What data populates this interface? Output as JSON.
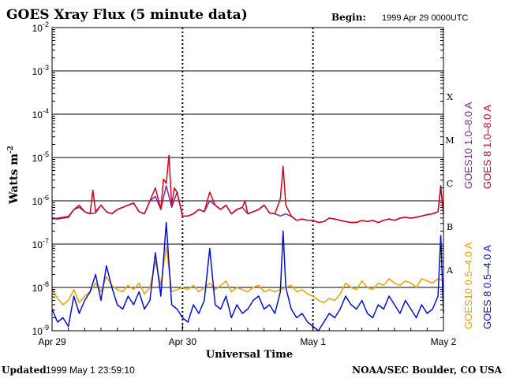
{
  "header": {
    "title": "GOES Xray Flux (5 minute data)",
    "begin_label": "Begin:",
    "begin_value": "1999 Apr 29 0000UTC"
  },
  "footer": {
    "updated_label": "Updated",
    "updated_value": "1999 May  1 23:59:10",
    "credit": "NOAA/SEC Boulder, CO USA"
  },
  "chart_data": {
    "type": "line",
    "title": "GOES Xray Flux (5 minute data)",
    "xlabel": "Universal Time",
    "ylabel": "Watts m",
    "ylabel_sup": "-2",
    "yscale": "log",
    "ylim": [
      1e-09,
      0.01
    ],
    "xlim": [
      0,
      72
    ],
    "x_unit": "hours since 1999 Apr 29 0000UTC",
    "x_ticks": [
      {
        "value": 0,
        "label": "Apr 29"
      },
      {
        "value": 24,
        "label": "Apr 30"
      },
      {
        "value": 48,
        "label": "May 1"
      },
      {
        "value": 72,
        "label": "May 2"
      }
    ],
    "y_ticks": [
      {
        "exp": -2,
        "label": "10",
        "sup": "-2"
      },
      {
        "exp": -3,
        "label": "10",
        "sup": "-3"
      },
      {
        "exp": -4,
        "label": "10",
        "sup": "-4"
      },
      {
        "exp": -5,
        "label": "10",
        "sup": "-5"
      },
      {
        "exp": -6,
        "label": "10",
        "sup": "-6"
      },
      {
        "exp": -7,
        "label": "10",
        "sup": "-7"
      },
      {
        "exp": -8,
        "label": "10",
        "sup": "-8"
      },
      {
        "exp": -9,
        "label": "10",
        "sup": "-9"
      }
    ],
    "flare_classes": [
      {
        "label": "X",
        "exp": -3.6
      },
      {
        "label": "M",
        "exp": -4.6
      },
      {
        "label": "C",
        "exp": -5.6
      },
      {
        "label": "B",
        "exp": -6.6
      },
      {
        "label": "A",
        "exp": -7.6
      }
    ],
    "grid": true,
    "series": [
      {
        "name": "GOES10 1.0–8.0 A",
        "color": "#7a28a8",
        "points": [
          [
            0,
            -6.42
          ],
          [
            1,
            -6.4
          ],
          [
            2,
            -6.38
          ],
          [
            3,
            -6.36
          ],
          [
            4,
            -6.2
          ],
          [
            5,
            -6.15
          ],
          [
            6,
            -6.25
          ],
          [
            7,
            -6.3
          ],
          [
            8,
            -6.28
          ],
          [
            9,
            -6.1
          ],
          [
            10,
            -6.25
          ],
          [
            11,
            -6.3
          ],
          [
            12,
            -6.2
          ],
          [
            13,
            -6.15
          ],
          [
            14,
            -6.1
          ],
          [
            15,
            -6.05
          ],
          [
            16,
            -6.25
          ],
          [
            17,
            -6.3
          ],
          [
            18,
            -6.0
          ],
          [
            19,
            -5.9
          ],
          [
            20,
            -6.2
          ],
          [
            21,
            -5.65
          ],
          [
            22,
            -6.15
          ],
          [
            23,
            -5.8
          ],
          [
            24,
            -6.35
          ],
          [
            25,
            -6.35
          ],
          [
            26,
            -6.3
          ],
          [
            27,
            -6.2
          ],
          [
            28,
            -6.25
          ],
          [
            29,
            -6.0
          ],
          [
            30,
            -6.1
          ],
          [
            31,
            -6.2
          ],
          [
            32,
            -6.1
          ],
          [
            33,
            -6.3
          ],
          [
            34,
            -6.2
          ],
          [
            35,
            -6.15
          ],
          [
            36,
            -6.3
          ],
          [
            37,
            -6.25
          ],
          [
            38,
            -6.2
          ],
          [
            39,
            -6.1
          ],
          [
            40,
            -6.28
          ],
          [
            41,
            -6.3
          ],
          [
            42,
            -6.35
          ],
          [
            43,
            -6.3
          ],
          [
            44,
            -6.36
          ],
          [
            45,
            -6.45
          ],
          [
            46,
            -6.42
          ],
          [
            47,
            -6.45
          ],
          [
            48,
            -6.45
          ],
          [
            49,
            -6.5
          ],
          [
            50,
            -6.48
          ],
          [
            51,
            -6.4
          ],
          [
            52,
            -6.42
          ],
          [
            53,
            -6.45
          ],
          [
            54,
            -6.48
          ],
          [
            55,
            -6.5
          ],
          [
            56,
            -6.5
          ],
          [
            57,
            -6.45
          ],
          [
            58,
            -6.48
          ],
          [
            59,
            -6.45
          ],
          [
            60,
            -6.5
          ],
          [
            61,
            -6.45
          ],
          [
            62,
            -6.42
          ],
          [
            63,
            -6.45
          ],
          [
            64,
            -6.4
          ],
          [
            65,
            -6.38
          ],
          [
            66,
            -6.4
          ],
          [
            67,
            -6.38
          ],
          [
            68,
            -6.35
          ],
          [
            69,
            -6.32
          ],
          [
            70,
            -6.3
          ],
          [
            71,
            -6.25
          ],
          [
            71.5,
            -5.7
          ],
          [
            72,
            -6.3
          ]
        ]
      },
      {
        "name": "GOES 8 1.0–8.0 A",
        "color": "#d8001c",
        "points": [
          [
            0,
            -6.4
          ],
          [
            1,
            -6.42
          ],
          [
            2,
            -6.4
          ],
          [
            3,
            -6.38
          ],
          [
            4,
            -6.2
          ],
          [
            5,
            -6.1
          ],
          [
            6,
            -6.25
          ],
          [
            7,
            -6.3
          ],
          [
            7.5,
            -5.75
          ],
          [
            8,
            -6.25
          ],
          [
            9,
            -6.1
          ],
          [
            10,
            -6.25
          ],
          [
            11,
            -6.3
          ],
          [
            12,
            -6.2
          ],
          [
            13,
            -6.15
          ],
          [
            14,
            -6.1
          ],
          [
            15,
            -6.05
          ],
          [
            16,
            -6.25
          ],
          [
            17,
            -6.3
          ],
          [
            18,
            -6.0
          ],
          [
            19,
            -5.7
          ],
          [
            20,
            -6.2
          ],
          [
            20.5,
            -5.5
          ],
          [
            21,
            -5.6
          ],
          [
            21.5,
            -4.95
          ],
          [
            22,
            -6.1
          ],
          [
            22.5,
            -5.7
          ],
          [
            23,
            -5.8
          ],
          [
            24,
            -6.35
          ],
          [
            25,
            -6.35
          ],
          [
            26,
            -6.3
          ],
          [
            27,
            -6.2
          ],
          [
            28,
            -6.25
          ],
          [
            29,
            -5.8
          ],
          [
            30,
            -6.1
          ],
          [
            31,
            -6.2
          ],
          [
            32,
            -6.1
          ],
          [
            33,
            -6.3
          ],
          [
            34,
            -6.2
          ],
          [
            35,
            -6.15
          ],
          [
            35.5,
            -6.0
          ],
          [
            36,
            -6.3
          ],
          [
            37,
            -6.25
          ],
          [
            38,
            -6.2
          ],
          [
            39,
            -6.1
          ],
          [
            40,
            -6.28
          ],
          [
            41,
            -6.3
          ],
          [
            42,
            -5.95
          ],
          [
            42.5,
            -5.2
          ],
          [
            43,
            -6.1
          ],
          [
            44,
            -6.35
          ],
          [
            45,
            -6.45
          ],
          [
            46,
            -6.42
          ],
          [
            47,
            -6.45
          ],
          [
            48,
            -6.45
          ],
          [
            49,
            -6.5
          ],
          [
            50,
            -6.48
          ],
          [
            51,
            -6.4
          ],
          [
            52,
            -6.42
          ],
          [
            53,
            -6.45
          ],
          [
            54,
            -6.48
          ],
          [
            55,
            -6.5
          ],
          [
            56,
            -6.5
          ],
          [
            57,
            -6.45
          ],
          [
            58,
            -6.48
          ],
          [
            59,
            -6.45
          ],
          [
            60,
            -6.5
          ],
          [
            61,
            -6.45
          ],
          [
            62,
            -6.42
          ],
          [
            63,
            -6.45
          ],
          [
            64,
            -6.4
          ],
          [
            65,
            -6.38
          ],
          [
            66,
            -6.4
          ],
          [
            67,
            -6.38
          ],
          [
            68,
            -6.35
          ],
          [
            69,
            -6.32
          ],
          [
            70,
            -6.3
          ],
          [
            71,
            -6.25
          ],
          [
            71.5,
            -5.65
          ],
          [
            72,
            -6.28
          ]
        ]
      },
      {
        "name": "GOES10 0.5–4.0 A",
        "color": "#f0a000",
        "points": [
          [
            0,
            -8.05
          ],
          [
            1,
            -8.25
          ],
          [
            2,
            -8.4
          ],
          [
            3,
            -8.3
          ],
          [
            4,
            -8.05
          ],
          [
            5,
            -8.35
          ],
          [
            6,
            -8.2
          ],
          [
            7,
            -8.1
          ],
          [
            8,
            -7.9
          ],
          [
            9,
            -8.1
          ],
          [
            10,
            -7.75
          ],
          [
            11,
            -7.95
          ],
          [
            12,
            -8.05
          ],
          [
            13,
            -8.1
          ],
          [
            14,
            -7.95
          ],
          [
            15,
            -8.05
          ],
          [
            16,
            -7.9
          ],
          [
            17,
            -8.15
          ],
          [
            18,
            -8.0
          ],
          [
            19,
            -7.4
          ],
          [
            20,
            -7.95
          ],
          [
            21,
            -7.05
          ],
          [
            22,
            -8.1
          ],
          [
            23,
            -8.05
          ],
          [
            24,
            -8.0
          ],
          [
            25,
            -8.05
          ],
          [
            26,
            -7.95
          ],
          [
            27,
            -8.1
          ],
          [
            28,
            -8.0
          ],
          [
            29,
            -7.9
          ],
          [
            30,
            -8.05
          ],
          [
            31,
            -7.95
          ],
          [
            32,
            -7.85
          ],
          [
            33,
            -8.1
          ],
          [
            34,
            -8.0
          ],
          [
            35,
            -8.05
          ],
          [
            36,
            -8.1
          ],
          [
            37,
            -8.0
          ],
          [
            38,
            -7.95
          ],
          [
            39,
            -8.1
          ],
          [
            40,
            -8.05
          ],
          [
            41,
            -8.1
          ],
          [
            42,
            -8.05
          ],
          [
            43,
            -8.0
          ],
          [
            44,
            -7.95
          ],
          [
            45,
            -8.1
          ],
          [
            46,
            -8.05
          ],
          [
            47,
            -8.15
          ],
          [
            48,
            -8.2
          ],
          [
            49,
            -8.3
          ],
          [
            50,
            -8.35
          ],
          [
            51,
            -8.25
          ],
          [
            52,
            -8.3
          ],
          [
            53,
            -8.15
          ],
          [
            54,
            -7.9
          ],
          [
            55,
            -8.0
          ],
          [
            56,
            -8.05
          ],
          [
            57,
            -7.85
          ],
          [
            58,
            -8.0
          ],
          [
            59,
            -8.05
          ],
          [
            60,
            -7.9
          ],
          [
            61,
            -7.95
          ],
          [
            62,
            -7.8
          ],
          [
            63,
            -7.9
          ],
          [
            64,
            -7.95
          ],
          [
            65,
            -7.85
          ],
          [
            66,
            -7.9
          ],
          [
            67,
            -8.0
          ],
          [
            68,
            -7.8
          ],
          [
            69,
            -7.85
          ],
          [
            70,
            -7.9
          ],
          [
            71,
            -7.8
          ],
          [
            72,
            -7.85
          ]
        ]
      },
      {
        "name": "GOES 8 0.5–4.0 A",
        "color": "#0010d8",
        "points": [
          [
            0,
            -8.5
          ],
          [
            1,
            -8.8
          ],
          [
            2,
            -8.7
          ],
          [
            3,
            -8.9
          ],
          [
            4,
            -8.2
          ],
          [
            5,
            -8.6
          ],
          [
            6,
            -8.3
          ],
          [
            7,
            -8.1
          ],
          [
            8,
            -7.7
          ],
          [
            9,
            -8.3
          ],
          [
            10,
            -7.5
          ],
          [
            11,
            -8.0
          ],
          [
            12,
            -8.4
          ],
          [
            13,
            -8.5
          ],
          [
            14,
            -8.2
          ],
          [
            15,
            -8.4
          ],
          [
            16,
            -8.1
          ],
          [
            17,
            -8.5
          ],
          [
            18,
            -8.3
          ],
          [
            19,
            -7.2
          ],
          [
            20,
            -8.2
          ],
          [
            21,
            -6.5
          ],
          [
            22,
            -8.4
          ],
          [
            23,
            -8.5
          ],
          [
            24,
            -8.7
          ],
          [
            25,
            -8.8
          ],
          [
            26,
            -8.4
          ],
          [
            27,
            -8.6
          ],
          [
            28,
            -8.3
          ],
          [
            29,
            -7.1
          ],
          [
            30,
            -8.4
          ],
          [
            31,
            -8.5
          ],
          [
            32,
            -8.2
          ],
          [
            33,
            -8.7
          ],
          [
            34,
            -8.4
          ],
          [
            35,
            -8.6
          ],
          [
            36,
            -8.5
          ],
          [
            37,
            -8.3
          ],
          [
            38,
            -8.2
          ],
          [
            39,
            -8.5
          ],
          [
            40,
            -8.4
          ],
          [
            41,
            -8.6
          ],
          [
            42,
            -8.1
          ],
          [
            42.5,
            -6.7
          ],
          [
            43,
            -8.0
          ],
          [
            44,
            -8.5
          ],
          [
            45,
            -8.7
          ],
          [
            46,
            -8.6
          ],
          [
            47,
            -8.8
          ],
          [
            48,
            -8.9
          ],
          [
            49,
            -9.0
          ],
          [
            50,
            -8.8
          ],
          [
            51,
            -8.6
          ],
          [
            52,
            -8.7
          ],
          [
            53,
            -8.5
          ],
          [
            54,
            -8.2
          ],
          [
            55,
            -8.4
          ],
          [
            56,
            -8.5
          ],
          [
            57,
            -8.3
          ],
          [
            58,
            -8.6
          ],
          [
            59,
            -8.7
          ],
          [
            60,
            -8.4
          ],
          [
            61,
            -8.5
          ],
          [
            62,
            -8.2
          ],
          [
            63,
            -8.4
          ],
          [
            64,
            -8.6
          ],
          [
            65,
            -8.3
          ],
          [
            66,
            -8.5
          ],
          [
            67,
            -8.7
          ],
          [
            68,
            -8.4
          ],
          [
            69,
            -8.6
          ],
          [
            70,
            -8.5
          ],
          [
            71,
            -8.2
          ],
          [
            71.5,
            -6.8
          ],
          [
            72,
            -8.6
          ]
        ]
      }
    ]
  }
}
